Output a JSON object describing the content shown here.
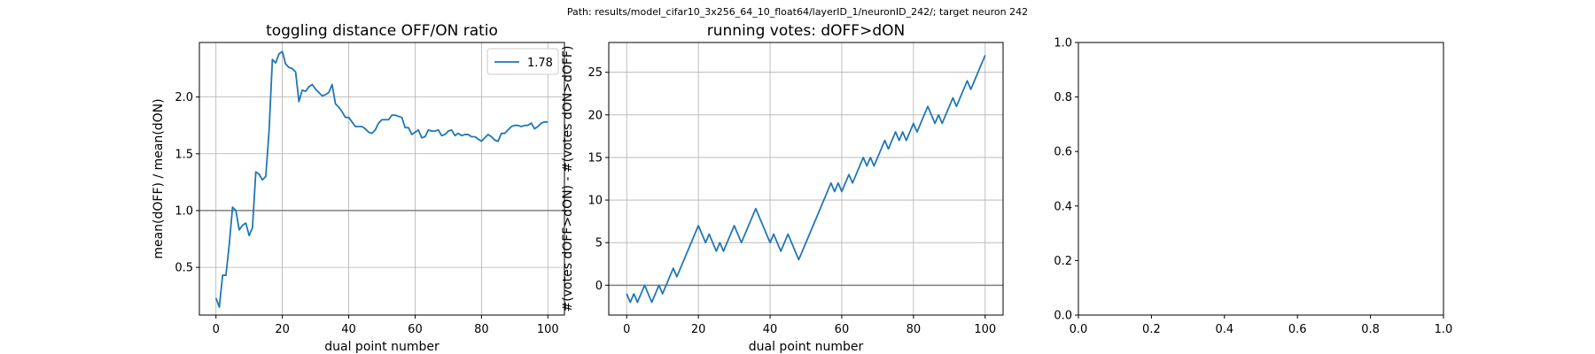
{
  "suptitle": "Path: results/model_cifar10_3x256_64_10_float64/layerID_1/neuronID_242/; target neuron 242",
  "chart_data": [
    {
      "type": "line",
      "title": "toggling distance OFF/ON ratio",
      "xlabel": "dual point number",
      "ylabel": "mean(dOFF) / mean(dON)",
      "xlim": [
        -5,
        105
      ],
      "ylim": [
        0.08,
        2.48
      ],
      "xticks": [
        0,
        20,
        40,
        60,
        80,
        100
      ],
      "yticks": [
        0.5,
        1.0,
        1.5,
        2.0
      ],
      "xtick_labels": [
        "0",
        "20",
        "40",
        "60",
        "80",
        "100"
      ],
      "ytick_labels": [
        "0.5",
        "1.0",
        "1.5",
        "2.0"
      ],
      "grid": true,
      "hline": 1.0,
      "legend_loc": "upper-right",
      "color": "#1f77b4",
      "series": [
        {
          "name": "1.78",
          "x": [
            0,
            1,
            2,
            3,
            4,
            5,
            6,
            7,
            8,
            9,
            10,
            11,
            12,
            13,
            14,
            15,
            16,
            17,
            18,
            19,
            20,
            21,
            22,
            23,
            24,
            25,
            26,
            27,
            28,
            29,
            30,
            31,
            32,
            33,
            34,
            35,
            36,
            37,
            38,
            39,
            40,
            41,
            42,
            43,
            44,
            45,
            46,
            47,
            48,
            49,
            50,
            51,
            52,
            53,
            54,
            55,
            56,
            57,
            58,
            59,
            60,
            61,
            62,
            63,
            64,
            65,
            66,
            67,
            68,
            69,
            70,
            71,
            72,
            73,
            74,
            75,
            76,
            77,
            78,
            79,
            80,
            81,
            82,
            83,
            84,
            85,
            86,
            87,
            88,
            89,
            90,
            91,
            92,
            93,
            94,
            95,
            96,
            97,
            98,
            99,
            100
          ],
          "values": [
            0.23,
            0.15,
            0.43,
            0.43,
            0.7,
            1.03,
            1.0,
            0.83,
            0.87,
            0.89,
            0.78,
            0.85,
            1.34,
            1.32,
            1.27,
            1.3,
            1.7,
            2.33,
            2.3,
            2.38,
            2.4,
            2.29,
            2.26,
            2.25,
            2.22,
            1.96,
            2.06,
            2.05,
            2.09,
            2.11,
            2.07,
            2.04,
            2.01,
            2.02,
            2.04,
            2.11,
            1.94,
            1.91,
            1.87,
            1.82,
            1.82,
            1.78,
            1.74,
            1.74,
            1.74,
            1.72,
            1.69,
            1.68,
            1.71,
            1.77,
            1.8,
            1.8,
            1.8,
            1.84,
            1.84,
            1.83,
            1.82,
            1.73,
            1.73,
            1.67,
            1.69,
            1.71,
            1.64,
            1.65,
            1.71,
            1.7,
            1.7,
            1.71,
            1.66,
            1.67,
            1.7,
            1.71,
            1.66,
            1.68,
            1.66,
            1.67,
            1.67,
            1.65,
            1.65,
            1.63,
            1.61,
            1.64,
            1.67,
            1.65,
            1.62,
            1.61,
            1.68,
            1.68,
            1.71,
            1.74,
            1.75,
            1.75,
            1.74,
            1.75,
            1.75,
            1.77,
            1.72,
            1.74,
            1.77,
            1.78,
            1.78
          ]
        }
      ]
    },
    {
      "type": "line",
      "title": "running votes: dOFF>dON",
      "xlabel": "dual point number",
      "ylabel": "#(votes dOFF>dON) - #(votes dON>dOFF)",
      "xlim": [
        -5,
        105
      ],
      "ylim": [
        -3.5,
        28.5
      ],
      "xticks": [
        0,
        20,
        40,
        60,
        80,
        100
      ],
      "yticks": [
        0,
        5,
        10,
        15,
        20,
        25
      ],
      "xtick_labels": [
        "0",
        "20",
        "40",
        "60",
        "80",
        "100"
      ],
      "ytick_labels": [
        "0",
        "5",
        "10",
        "15",
        "20",
        "25"
      ],
      "grid": true,
      "hline": 0,
      "color": "#1f77b4",
      "series": [
        {
          "x": [
            0,
            1,
            2,
            3,
            4,
            5,
            6,
            7,
            8,
            9,
            10,
            11,
            12,
            13,
            14,
            15,
            16,
            17,
            18,
            19,
            20,
            21,
            22,
            23,
            24,
            25,
            26,
            27,
            28,
            29,
            30,
            31,
            32,
            33,
            34,
            35,
            36,
            37,
            38,
            39,
            40,
            41,
            42,
            43,
            44,
            45,
            46,
            47,
            48,
            49,
            50,
            51,
            52,
            53,
            54,
            55,
            56,
            57,
            58,
            59,
            60,
            61,
            62,
            63,
            64,
            65,
            66,
            67,
            68,
            69,
            70,
            71,
            72,
            73,
            74,
            75,
            76,
            77,
            78,
            79,
            80,
            81,
            82,
            83,
            84,
            85,
            86,
            87,
            88,
            89,
            90,
            91,
            92,
            93,
            94,
            95,
            96,
            97,
            98,
            99,
            100
          ],
          "values": [
            -1,
            -2,
            -1,
            -2,
            -1,
            0,
            -1,
            -2,
            -1,
            0,
            -1,
            0,
            1,
            2,
            1,
            2,
            3,
            4,
            5,
            6,
            7,
            6,
            5,
            6,
            5,
            4,
            5,
            4,
            5,
            6,
            7,
            6,
            5,
            6,
            7,
            8,
            9,
            8,
            7,
            6,
            5,
            6,
            5,
            4,
            5,
            6,
            5,
            4,
            3,
            4,
            5,
            6,
            7,
            8,
            9,
            10,
            11,
            12,
            11,
            12,
            11,
            12,
            13,
            12,
            13,
            14,
            15,
            14,
            15,
            14,
            15,
            16,
            17,
            16,
            17,
            18,
            17,
            18,
            17,
            18,
            19,
            18,
            19,
            20,
            21,
            20,
            19,
            20,
            19,
            20,
            21,
            22,
            21,
            22,
            23,
            24,
            23,
            24,
            25,
            26,
            27
          ]
        }
      ]
    },
    {
      "type": "line",
      "title": "",
      "xlabel": "",
      "ylabel": "",
      "xlim": [
        0,
        1
      ],
      "ylim": [
        0,
        1
      ],
      "xticks": [
        0,
        0.2,
        0.4,
        0.6,
        0.8,
        1.0
      ],
      "yticks": [
        0,
        0.2,
        0.4,
        0.6,
        0.8,
        1.0
      ],
      "xtick_labels": [
        "0.0",
        "0.2",
        "0.4",
        "0.6",
        "0.8",
        "1.0"
      ],
      "ytick_labels": [
        "0.0",
        "0.2",
        "0.4",
        "0.6",
        "0.8",
        "1.0"
      ],
      "grid": false,
      "series": []
    }
  ]
}
